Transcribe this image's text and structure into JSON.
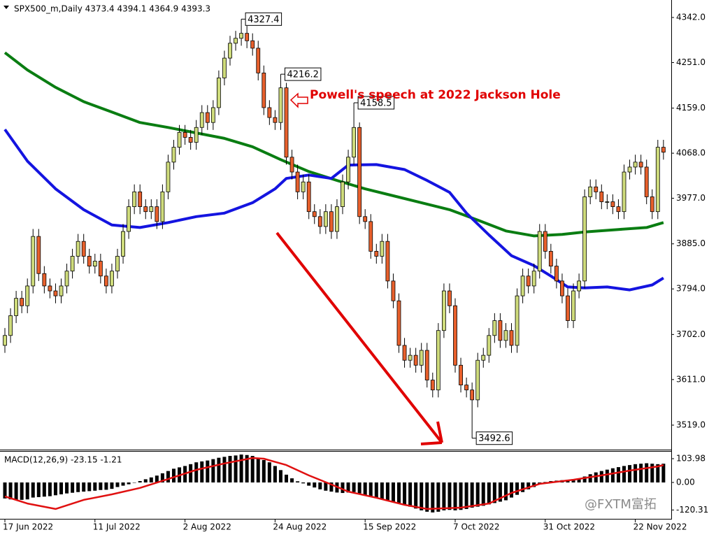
{
  "chart_data": [
    {
      "type": "candlestick",
      "title": "SPX500_m,Daily 4373.4 4394.1 4364.9 4393.3",
      "categories": [
        "17 Jun 2022",
        null,
        null,
        null,
        null,
        null,
        null,
        null,
        null,
        null,
        null,
        null,
        null,
        null,
        null,
        null,
        "11 Jul 2022",
        null,
        null,
        null,
        null,
        null,
        null,
        null,
        null,
        null,
        null,
        null,
        null,
        null,
        null,
        null,
        "2 Aug 2022",
        null,
        null,
        null,
        null,
        null,
        null,
        null,
        null,
        null,
        null,
        null,
        null,
        null,
        null,
        null,
        "24 Aug 2022",
        null,
        null,
        null,
        null,
        null,
        null,
        null,
        null,
        null,
        null,
        null,
        null,
        null,
        null,
        null,
        "15 Sep 2022",
        null,
        null,
        null,
        null,
        null,
        null,
        null,
        null,
        null,
        null,
        null,
        null,
        null,
        null,
        null,
        "7 Oct 2022",
        null,
        null,
        null,
        null,
        null,
        null,
        null,
        null,
        null,
        null,
        null,
        null,
        null,
        null,
        null,
        "31 Oct 2022",
        null,
        null,
        null,
        null,
        null,
        null,
        null,
        null,
        null,
        null,
        null,
        null,
        null,
        null,
        null,
        "22 Nov 2022",
        null,
        null,
        null,
        null,
        null
      ],
      "open": [
        3680,
        3700,
        3740,
        3775,
        3760,
        3800,
        3900,
        3825,
        3800,
        3790,
        3780,
        3800,
        3830,
        3860,
        3890,
        3860,
        3840,
        3850,
        3820,
        3800,
        3830,
        3860,
        3910,
        3960,
        3990,
        3960,
        3950,
        3960,
        3930,
        3990,
        4050,
        4080,
        4110,
        4100,
        4090,
        4120,
        4150,
        4130,
        4160,
        4220,
        4260,
        4290,
        4300,
        4310,
        4295,
        4280,
        4230,
        4160,
        4140,
        4130,
        4200,
        4060,
        4030,
        3990,
        4010,
        3950,
        3940,
        3920,
        3950,
        3910,
        3960,
        4010,
        4060,
        4120,
        3940,
        3930,
        3870,
        3860,
        3890,
        3810,
        3770,
        3680,
        3650,
        3660,
        3640,
        3670,
        3610,
        3590,
        3710,
        3790,
        3760,
        3640,
        3600,
        3590,
        3570,
        3650,
        3660,
        3700,
        3730,
        3690,
        3710,
        3680,
        3780,
        3820,
        3800,
        3830,
        3910,
        3870,
        3840,
        3810,
        3780,
        3730,
        3790,
        3810,
        3980,
        4000,
        3990,
        3970,
        3970,
        3960,
        3950,
        4030,
        4040,
        4050,
        4040,
        3980,
        3950,
        4080
      ],
      "high": [
        3715,
        3755,
        3790,
        3790,
        3815,
        3915,
        3915,
        3840,
        3815,
        3805,
        3815,
        3845,
        3875,
        3905,
        3905,
        3875,
        3865,
        3865,
        3835,
        3845,
        3875,
        3925,
        3975,
        4005,
        4005,
        3975,
        3975,
        3975,
        4005,
        4065,
        4095,
        4125,
        4125,
        4115,
        4135,
        4165,
        4165,
        4175,
        4235,
        4275,
        4305,
        4315,
        4327.4,
        4325,
        4310,
        4295,
        4245,
        4175,
        4155,
        4216.2,
        4210,
        4075,
        4045,
        4025,
        4025,
        3965,
        3955,
        3965,
        3965,
        3975,
        4025,
        4075,
        4158.5,
        4130,
        3955,
        3945,
        3885,
        3905,
        3905,
        3825,
        3785,
        3695,
        3675,
        3675,
        3685,
        3685,
        3625,
        3725,
        3805,
        3805,
        3775,
        3655,
        3615,
        3605,
        3665,
        3675,
        3715,
        3745,
        3745,
        3725,
        3725,
        3795,
        3835,
        3835,
        3845,
        3925,
        3925,
        3885,
        3855,
        3825,
        3795,
        3805,
        3825,
        3995,
        4015,
        4015,
        4005,
        3985,
        3985,
        3975,
        4045,
        4055,
        4065,
        4065,
        4055,
        3995,
        4095,
        4095
      ],
      "low": [
        3665,
        3685,
        3725,
        3745,
        3745,
        3785,
        3810,
        3785,
        3775,
        3765,
        3765,
        3785,
        3815,
        3845,
        3845,
        3825,
        3825,
        3805,
        3785,
        3785,
        3815,
        3845,
        3895,
        3945,
        3945,
        3935,
        3935,
        3915,
        3915,
        3975,
        4035,
        4065,
        4085,
        4075,
        4075,
        4105,
        4115,
        4115,
        4145,
        4205,
        4245,
        4275,
        4285,
        4280,
        4265,
        4215,
        4145,
        4125,
        4115,
        4115,
        4045,
        4015,
        3975,
        3975,
        3935,
        3925,
        3905,
        3905,
        3895,
        3895,
        3945,
        3995,
        4045,
        3925,
        3915,
        3855,
        3845,
        3845,
        3795,
        3755,
        3665,
        3635,
        3635,
        3625,
        3625,
        3595,
        3575,
        3575,
        3695,
        3745,
        3625,
        3585,
        3575,
        3492.6,
        3555,
        3635,
        3645,
        3685,
        3675,
        3675,
        3665,
        3665,
        3765,
        3785,
        3785,
        3815,
        3855,
        3825,
        3795,
        3765,
        3715,
        3715,
        3775,
        3795,
        3965,
        3975,
        3955,
        3955,
        3945,
        3935,
        3935,
        4015,
        4025,
        4025,
        3965,
        3935,
        3935,
        4055
      ],
      "close": [
        3700,
        3740,
        3775,
        3760,
        3800,
        3900,
        3825,
        3800,
        3790,
        3780,
        3800,
        3830,
        3860,
        3890,
        3860,
        3840,
        3850,
        3820,
        3800,
        3830,
        3860,
        3910,
        3960,
        3990,
        3960,
        3950,
        3960,
        3930,
        3990,
        4050,
        4080,
        4110,
        4100,
        4090,
        4120,
        4150,
        4130,
        4160,
        4220,
        4260,
        4290,
        4300,
        4310,
        4295,
        4280,
        4230,
        4160,
        4140,
        4130,
        4200,
        4060,
        4030,
        3990,
        4010,
        3950,
        3940,
        3920,
        3950,
        3910,
        3960,
        4010,
        4060,
        4120,
        3940,
        3930,
        3870,
        3860,
        3890,
        3810,
        3770,
        3680,
        3650,
        3660,
        3640,
        3670,
        3610,
        3590,
        3710,
        3790,
        3760,
        3640,
        3600,
        3590,
        3570,
        3650,
        3660,
        3700,
        3730,
        3690,
        3710,
        3680,
        3780,
        3820,
        3800,
        3830,
        3910,
        3870,
        3840,
        3810,
        3780,
        3730,
        3790,
        3810,
        3980,
        4000,
        3990,
        3970,
        3970,
        3960,
        3950,
        4030,
        4040,
        4050,
        4040,
        3980,
        3950,
        4080,
        4070
      ],
      "up_color": "#cfdc7c",
      "down_color": "#e8602c",
      "moving_averages": [
        {
          "color": "#0a7d12",
          "x": [
            0,
            4,
            9,
            14,
            19,
            24,
            29,
            34,
            39,
            44,
            49,
            54,
            59,
            64,
            69,
            74,
            79,
            84,
            89,
            94,
            99,
            103,
            109,
            114,
            117
          ],
          "values": [
            4271,
            4236,
            4201,
            4172,
            4151,
            4130,
            4120,
            4109,
            4098,
            4081,
            4055,
            4031,
            4013,
            3996,
            3982,
            3968,
            3954,
            3933,
            3911,
            3901,
            3904,
            3909,
            3914,
            3918,
            3928
          ]
        },
        {
          "color": "#1414e0",
          "x": [
            0,
            4,
            9,
            14,
            19,
            24,
            29,
            34,
            39,
            44,
            48,
            50,
            54,
            58,
            61,
            66,
            71,
            75,
            79,
            82,
            86,
            90,
            94,
            97,
            100,
            103,
            107,
            111,
            115,
            117
          ],
          "values": [
            4116,
            4052,
            3996,
            3954,
            3923,
            3918,
            3928,
            3940,
            3947,
            3968,
            3996,
            4017,
            4024,
            4017,
            4044,
            4045,
            4035,
            4013,
            3989,
            3947,
            3903,
            3861,
            3841,
            3820,
            3798,
            3796,
            3798,
            3792,
            3802,
            3816
          ]
        }
      ],
      "labeled_highs": [
        42,
        49,
        62
      ],
      "labeled_lows": [
        83
      ],
      "annotation": "Powell's speech at 2022 Jackson Hole",
      "annotation_color": "#e00000",
      "ylim": [
        3469.6,
        4377.3
      ],
      "yticks": [
        {
          "value": 4342,
          "label": "4342.0"
        },
        {
          "value": 4251,
          "label": "4251.0"
        },
        {
          "value": 4159,
          "label": "4159.0"
        },
        {
          "value": 4068,
          "label": "4068.0"
        },
        {
          "value": 3977,
          "label": "3977.0"
        },
        {
          "value": 3885,
          "label": "3885.0"
        },
        {
          "value": 3794,
          "label": "3794.0"
        },
        {
          "value": 3702,
          "label": "3702.0"
        },
        {
          "value": 3611,
          "label": "3611.0"
        },
        {
          "value": 3519,
          "label": "3519.0"
        }
      ]
    },
    {
      "type": "macd",
      "title": "MACD(12,26,9) -23.15 -1.21",
      "color": "#000000",
      "values": [
        -70,
        -74,
        -76,
        -76,
        -74,
        -66,
        -64,
        -62,
        -60,
        -56,
        -52,
        -48,
        -45,
        -42,
        -40,
        -38,
        -36,
        -33,
        -32,
        -28,
        -20,
        -14,
        -8,
        0,
        6,
        14,
        22,
        30,
        40,
        50,
        60,
        66,
        72,
        80,
        88,
        92,
        96,
        102,
        108,
        112,
        116,
        118,
        122,
        120,
        116,
        108,
        98,
        88,
        72,
        54,
        34,
        18,
        5,
        -4,
        -14,
        -22,
        -30,
        -36,
        -40,
        -44,
        -46,
        -44,
        -42,
        -48,
        -54,
        -60,
        -66,
        -72,
        -78,
        -84,
        -90,
        -98,
        -106,
        -114,
        -122,
        -128,
        -131,
        -128,
        -122,
        -120,
        -122,
        -120,
        -116,
        -110,
        -106,
        -102,
        -96,
        -90,
        -84,
        -78,
        -66,
        -54,
        -42,
        -30,
        -20,
        -8,
        2,
        6,
        8,
        10,
        12,
        14,
        16,
        26,
        36,
        44,
        50,
        56,
        62,
        67,
        72,
        76,
        80,
        82,
        84,
        82,
        80,
        82
      ],
      "signal": {
        "color": "#e01010",
        "x": [
          0,
          4,
          9,
          14,
          19,
          24,
          29,
          34,
          39,
          44,
          46,
          50,
          54,
          58,
          61,
          66,
          71,
          75,
          81,
          86,
          90,
          95,
          101,
          106,
          111,
          116,
          117
        ],
        "values": [
          -61,
          -92,
          -116,
          -76,
          -52,
          -24,
          15,
          55,
          83,
          107,
          104,
          76,
          31,
          -9,
          -40,
          -67,
          -98,
          -116,
          -110,
          -92,
          -46,
          -6,
          12,
          31,
          52,
          70,
          76
        ]
      },
      "ylim": [
        -159,
        134.5
      ],
      "yticks": [
        103.98,
        {
          "value": 0,
          "label": "0.00"
        },
        -120.31
      ]
    }
  ],
  "watermark": "@FXTM富拓"
}
